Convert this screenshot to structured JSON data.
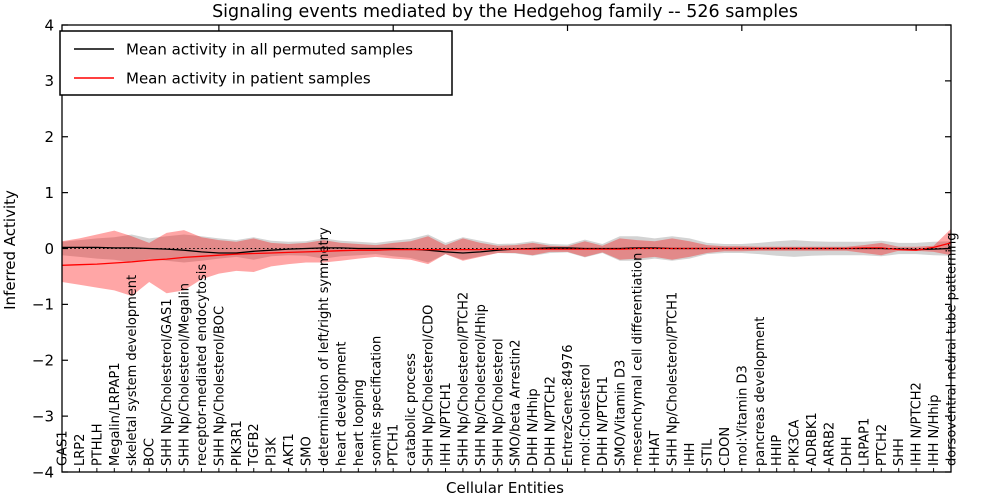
{
  "chart_data": {
    "type": "line",
    "title": "Signaling events mediated by the Hedgehog family -- 526 samples",
    "xlabel": "Cellular Entities",
    "ylabel": "Inferred Activity",
    "ylim": [
      -4,
      4
    ],
    "yticks": [
      4,
      3,
      2,
      1,
      0,
      -1,
      -2,
      -3,
      -4
    ],
    "ytick_labels": [
      "4",
      "3",
      "2",
      "1",
      "0",
      "−1",
      "−2",
      "−3",
      "−4"
    ],
    "top_axis_ticks": [
      10,
      20,
      30,
      40,
      50
    ],
    "grid": false,
    "legend_position": "upper left",
    "reference_line": {
      "y": 0,
      "style": "dotted",
      "color": "#000000"
    },
    "categories": [
      "GAS1",
      "LRP2",
      "PTHLH",
      "Megalin/LRPAP1",
      "skeletal system development",
      "BOC",
      "SHH Np/Cholesterol/GAS1",
      "SHH Np/Cholesterol/Megalin",
      "receptor-mediated endocytosis",
      "SHH Np/Cholesterol/BOC",
      "PIK3R1",
      "TGFB2",
      "PI3K",
      "AKT1",
      "SMO",
      "determination of left/right symmetry",
      "heart development",
      "heart looping",
      "somite specification",
      "PTCH1",
      "catabolic process",
      "SHH Np/Cholesterol/CDO",
      "IHH N/PTCH1",
      "SHH Np/Cholesterol/PTCH2",
      "SHH Np/Cholesterol/Hhip",
      "SHH Np/Cholesterol",
      "SMO/beta Arrestin2",
      "DHH N/Hhip",
      "DHH N/PTCH2",
      "EntrezGene:84976",
      "mol:Cholesterol",
      "DHH N/PTCH1",
      "SMO/Vitamin D3",
      "mesenchymal cell differentiation",
      "HHAT",
      "SHH Np/Cholesterol/PTCH1",
      "IHH",
      "STIL",
      "CDON",
      "mol:Vitamin D3",
      "pancreas development",
      "HHIP",
      "PIK3CA",
      "ADRBK1",
      "ARRB2",
      "DHH",
      "LRPAP1",
      "PTCH2",
      "SHH",
      "IHH N/PTCH2",
      "IHH N/Hhip",
      "dorsoventral neural tube patterning"
    ],
    "series": [
      {
        "name": "Mean activity in all permuted samples",
        "color": "#000000",
        "values": [
          0.02,
          0.02,
          0.02,
          0.01,
          0.01,
          0,
          -0.01,
          -0.03,
          -0.06,
          -0.08,
          -0.08,
          -0.05,
          -0.03,
          -0.01,
          0,
          0.01,
          0.01,
          0,
          0,
          0,
          -0.01,
          -0.03,
          -0.06,
          -0.08,
          -0.06,
          -0.03,
          -0.01,
          0,
          0.01,
          0.01,
          0,
          0,
          0,
          0.01,
          0.01,
          0,
          0,
          0,
          0,
          0,
          0,
          0,
          0,
          0,
          0,
          0,
          0,
          0,
          -0.01,
          -0.02,
          -0.01,
          0
        ],
        "band": {
          "color": "#808080",
          "opacity": 0.35,
          "upper": [
            0.12,
            0.15,
            0.18,
            0.2,
            0.25,
            0.18,
            0.22,
            0.25,
            0.22,
            0.18,
            0.15,
            0.2,
            0.14,
            0.12,
            0.13,
            0.18,
            0.14,
            0.12,
            0.1,
            0.14,
            0.17,
            0.25,
            0.1,
            0.2,
            0.14,
            0.08,
            0.09,
            0.13,
            0.08,
            0.07,
            0.16,
            0.08,
            0.22,
            0.22,
            0.18,
            0.22,
            0.18,
            0.1,
            0.08,
            0.08,
            0.1,
            0.13,
            0.15,
            0.13,
            0.12,
            0.12,
            0.12,
            0.14,
            0.1,
            0.1,
            0.12,
            0.13
          ],
          "lower": [
            -0.12,
            -0.15,
            -0.18,
            -0.2,
            -0.25,
            -0.18,
            -0.22,
            -0.25,
            -0.22,
            -0.18,
            -0.15,
            -0.2,
            -0.14,
            -0.12,
            -0.13,
            -0.18,
            -0.14,
            -0.12,
            -0.1,
            -0.14,
            -0.17,
            -0.25,
            -0.1,
            -0.2,
            -0.14,
            -0.08,
            -0.09,
            -0.13,
            -0.08,
            -0.07,
            -0.16,
            -0.08,
            -0.22,
            -0.22,
            -0.18,
            -0.22,
            -0.18,
            -0.1,
            -0.08,
            -0.08,
            -0.1,
            -0.13,
            -0.15,
            -0.13,
            -0.12,
            -0.12,
            -0.12,
            -0.14,
            -0.1,
            -0.1,
            -0.12,
            -0.13
          ]
        }
      },
      {
        "name": "Mean activity in patient samples",
        "color": "#ff0000",
        "values": [
          -0.3,
          -0.29,
          -0.28,
          -0.26,
          -0.24,
          -0.21,
          -0.19,
          -0.16,
          -0.14,
          -0.12,
          -0.1,
          -0.09,
          -0.08,
          -0.07,
          -0.06,
          -0.05,
          -0.04,
          -0.03,
          -0.03,
          -0.02,
          -0.02,
          -0.02,
          -0.02,
          -0.02,
          -0.02,
          -0.01,
          -0.01,
          -0.01,
          -0.01,
          -0.01,
          -0.01,
          -0.01,
          -0.01,
          0,
          0,
          0,
          0,
          0,
          0,
          0,
          0,
          0,
          0,
          0,
          0,
          0,
          0.01,
          0.01,
          -0.02,
          -0.03,
          0.02,
          0.1
        ],
        "band": {
          "color": "#ff0000",
          "opacity": 0.35,
          "upper": [
            0.13,
            0.18,
            0.25,
            0.32,
            0.22,
            0.1,
            0.28,
            0.33,
            0.2,
            0.15,
            0.12,
            0.18,
            0.1,
            0.08,
            0.1,
            0.15,
            0.1,
            0.08,
            0.06,
            0.1,
            0.13,
            0.22,
            0.06,
            0.18,
            0.1,
            0.05,
            0.06,
            0.1,
            0.05,
            0.04,
            0.13,
            0.05,
            0.18,
            0.15,
            0.13,
            0.18,
            0.13,
            0.06,
            0.04,
            0.04,
            0.03,
            0.03,
            0.03,
            0.03,
            0.03,
            0.03,
            0.06,
            0.1,
            0.03,
            0.03,
            0.05,
            0.35
          ],
          "lower": [
            -0.6,
            -0.65,
            -0.7,
            -0.75,
            -0.85,
            -0.6,
            -0.8,
            -0.75,
            -0.55,
            -0.45,
            -0.4,
            -0.42,
            -0.32,
            -0.28,
            -0.25,
            -0.25,
            -0.22,
            -0.18,
            -0.15,
            -0.18,
            -0.2,
            -0.28,
            -0.1,
            -0.22,
            -0.15,
            -0.08,
            -0.08,
            -0.12,
            -0.06,
            -0.06,
            -0.15,
            -0.07,
            -0.2,
            -0.18,
            -0.15,
            -0.2,
            -0.15,
            -0.08,
            -0.05,
            -0.05,
            -0.04,
            -0.04,
            -0.04,
            -0.04,
            -0.04,
            -0.04,
            -0.08,
            -0.12,
            -0.04,
            -0.04,
            -0.06,
            -0.12
          ]
        }
      }
    ]
  }
}
